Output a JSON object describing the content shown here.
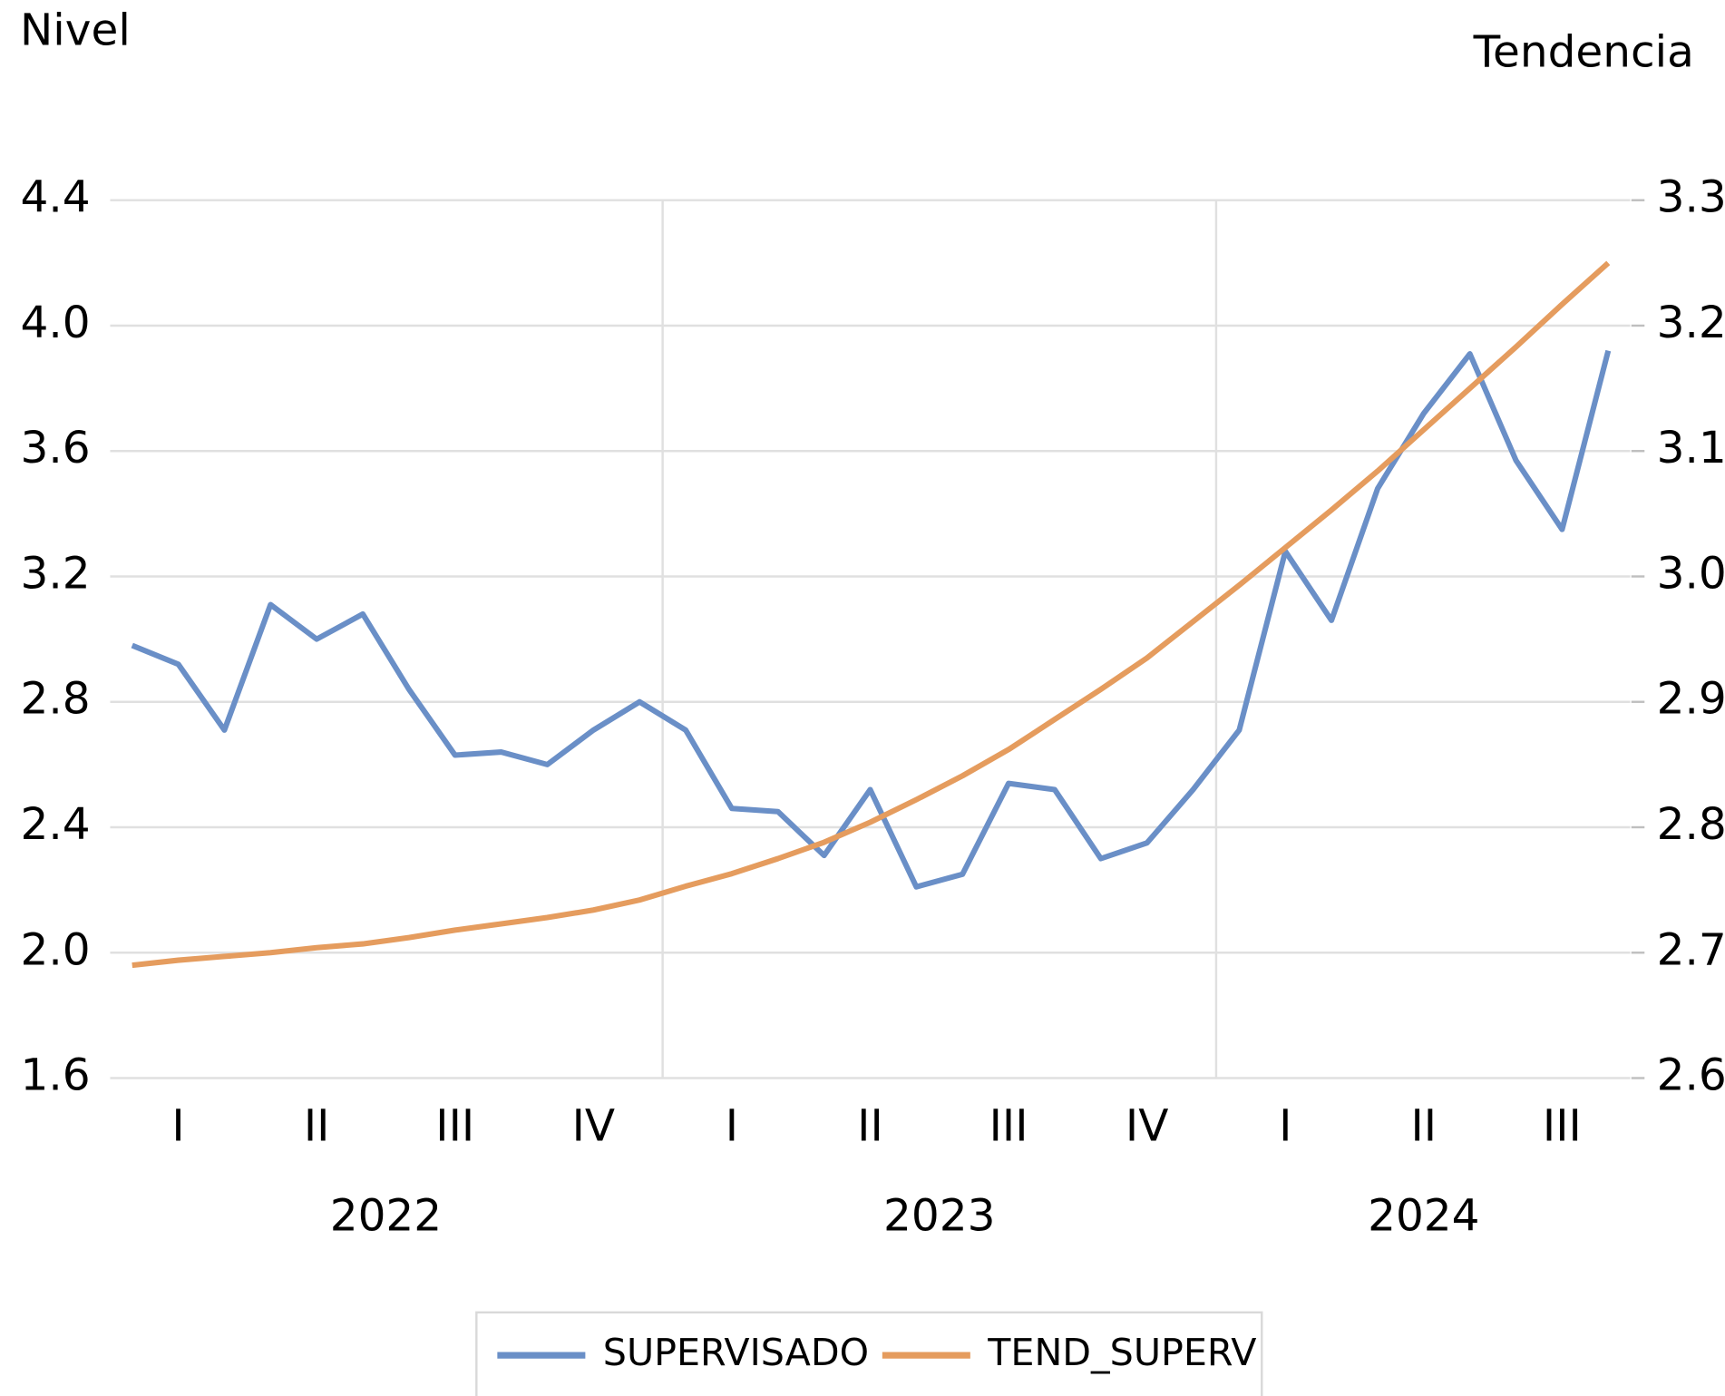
{
  "chart_data": {
    "type": "line",
    "y_axis_label": "Nivel",
    "y2_axis_label": "Tendencia",
    "categories": [
      null,
      "I",
      null,
      null,
      "II",
      null,
      null,
      "III",
      null,
      null,
      "IV",
      null,
      null,
      "I",
      null,
      null,
      "II",
      null,
      null,
      "III",
      null,
      null,
      "IV",
      null,
      null,
      "I",
      null,
      null,
      "II",
      null,
      null,
      "III",
      null
    ],
    "years": [
      "2022",
      "2023",
      "2024"
    ],
    "series": [
      {
        "name": "SUPERVISADO",
        "color": "#6a8fc7",
        "axis": "y",
        "values": [
          2.98,
          2.92,
          2.71,
          3.11,
          3.0,
          3.08,
          2.84,
          2.63,
          2.64,
          2.6,
          2.71,
          2.8,
          2.71,
          2.46,
          2.45,
          2.31,
          2.52,
          2.21,
          2.25,
          2.54,
          2.52,
          2.3,
          2.35,
          2.52,
          2.71,
          3.28,
          3.06,
          3.48,
          3.72,
          3.91,
          3.57,
          3.35,
          3.92
        ]
      },
      {
        "name": "TEND_SUPERV",
        "color": "#e59c5e",
        "axis": "y2",
        "values": [
          2.69,
          2.694,
          2.697,
          2.7,
          2.704,
          2.707,
          2.712,
          2.718,
          2.723,
          2.728,
          2.734,
          2.742,
          2.753,
          2.763,
          2.775,
          2.788,
          2.804,
          2.822,
          2.841,
          2.862,
          2.886,
          2.91,
          2.935,
          2.964,
          2.993,
          3.023,
          3.053,
          3.084,
          3.117,
          3.15,
          3.183,
          3.217,
          3.25
        ]
      }
    ],
    "ylim": [
      1.6,
      4.4
    ],
    "yticks": [
      {
        "value": 1.6,
        "label": "1.6"
      },
      {
        "value": 2.0,
        "label": "2.0"
      },
      {
        "value": 2.4,
        "label": "2.4"
      },
      {
        "value": 2.8,
        "label": "2.8"
      },
      {
        "value": 3.2,
        "label": "3.2"
      },
      {
        "value": 3.6,
        "label": "3.6"
      },
      {
        "value": 4.0,
        "label": "4.0"
      },
      {
        "value": 4.4,
        "label": "4.4"
      }
    ],
    "y2lim": [
      2.6,
      3.3
    ],
    "y2ticks": [
      2.6,
      2.7,
      2.8,
      2.9,
      {
        "value": 3.0,
        "label": "3.0"
      },
      3.1,
      3.2,
      3.3
    ],
    "grid": true,
    "legend": "bottom"
  }
}
